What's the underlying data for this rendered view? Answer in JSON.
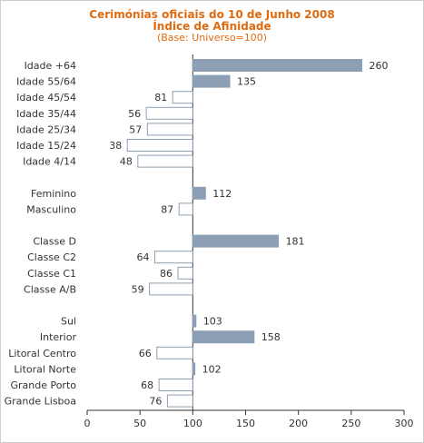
{
  "chart_data": {
    "type": "bar",
    "orientation": "horizontal",
    "title": "Cerimónias oficiais do 10 de Junho 2008",
    "subtitle": "Índice de Afinidade",
    "note": "(Base: Universo=100)",
    "baseline": 100,
    "xlim": [
      0,
      300
    ],
    "xticks": [
      0,
      50,
      100,
      150,
      200,
      250,
      300
    ],
    "grid": false,
    "colors": {
      "above": "#8c9fb4",
      "below": "#ffffff",
      "below_stroke": "#8c9fb4",
      "title": "#e06a10"
    },
    "categories": [
      "Idade +64",
      "Idade 55/64",
      "Idade 45/54",
      "Idade 35/44",
      "Idade 25/34",
      "Idade 15/24",
      "Idade 4/14",
      "Feminino",
      "Masculino",
      "Classe D",
      "Classe C2",
      "Classe C1",
      "Classe A/B",
      "Sul",
      "Interior",
      "Litoral Centro",
      "Litoral Norte",
      "Grande Porto",
      "Grande Lisboa"
    ],
    "values": [
      260,
      135,
      81,
      56,
      57,
      38,
      48,
      112,
      87,
      181,
      64,
      86,
      59,
      103,
      158,
      66,
      102,
      68,
      76
    ],
    "groups": [
      7,
      2,
      4,
      6
    ]
  }
}
